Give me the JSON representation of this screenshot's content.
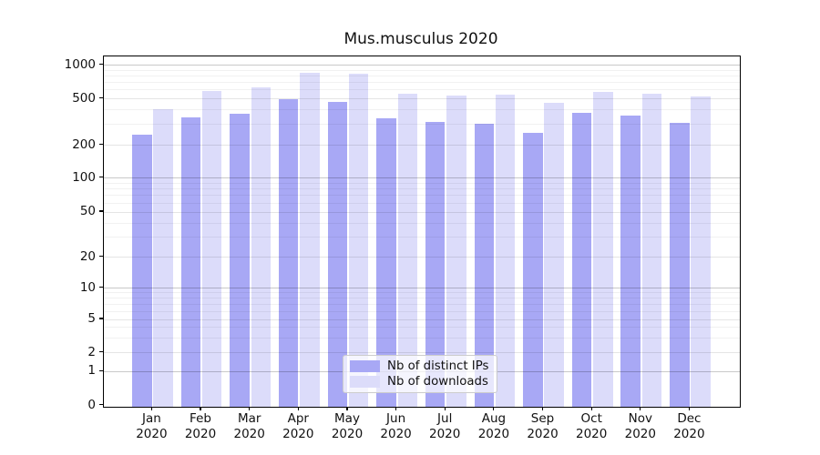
{
  "title": "Mus.musculus 2020",
  "y_axis": {
    "tick_labels": [
      "1000",
      "500",
      "200",
      "100",
      "50",
      "20",
      "10",
      "5",
      "2",
      "1",
      "0"
    ]
  },
  "x_axis": {
    "months": [
      "Jan",
      "Feb",
      "Mar",
      "Apr",
      "May",
      "Jun",
      "Jul",
      "Aug",
      "Sep",
      "Oct",
      "Nov",
      "Dec"
    ],
    "year": "2020"
  },
  "legend": {
    "items": [
      {
        "label": "Nb of distinct IPs",
        "color": "#a8a8f5"
      },
      {
        "label": "Nb of downloads",
        "color": "#dcdcfa"
      }
    ]
  },
  "colors": {
    "distinct_ips": "#a8a8f5",
    "downloads": "#dcdcfa",
    "major_grid": "rgba(0,0,0,0.21)",
    "medium_grid": "rgba(0,0,0,0.10)",
    "minor_grid": "rgba(0,0,0,0.055)"
  },
  "chart_data": {
    "type": "bar",
    "title": "Mus.musculus 2020",
    "categories": [
      "Jan 2020",
      "Feb 2020",
      "Mar 2020",
      "Apr 2020",
      "May 2020",
      "Jun 2020",
      "Jul 2020",
      "Aug 2020",
      "Sep 2020",
      "Oct 2020",
      "Nov 2020",
      "Dec 2020"
    ],
    "series": [
      {
        "name": "Nb of distinct IPs",
        "color": "#a8a8f5",
        "values": [
          246,
          344,
          375,
          492,
          471,
          339,
          317,
          306,
          254,
          382,
          357,
          312
        ]
      },
      {
        "name": "Nb of downloads",
        "color": "#dcdcfa",
        "values": [
          406,
          592,
          631,
          849,
          838,
          557,
          537,
          544,
          462,
          578,
          560,
          520
        ]
      }
    ],
    "xlabel": "",
    "ylabel": "",
    "yscale": "symlog",
    "yticks": [
      0,
      1,
      2,
      5,
      10,
      20,
      50,
      100,
      200,
      500,
      1000
    ],
    "ylim": [
      0,
      1100
    ],
    "grid": "both",
    "legend_position": "lower center"
  }
}
